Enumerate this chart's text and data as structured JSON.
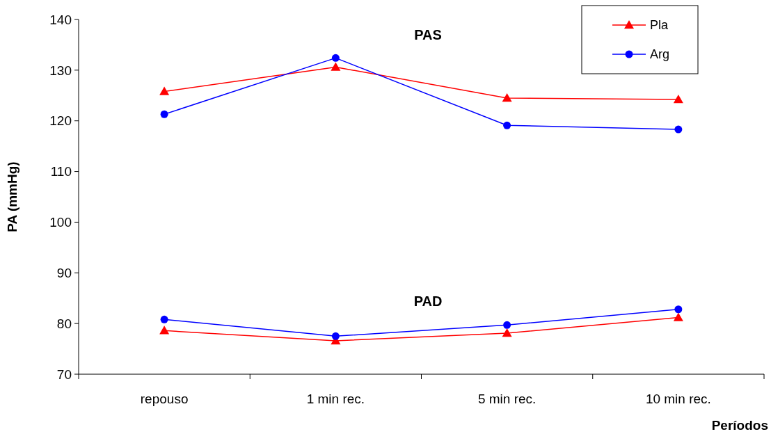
{
  "chart_data": {
    "type": "line",
    "ylabel": "PA (mmHg)",
    "xlabel": "Períodos",
    "categories": [
      "repouso",
      "1 min rec.",
      "5 min rec.",
      "10 min rec."
    ],
    "series": [
      {
        "name": "Pla",
        "color": "#ff0000",
        "marker": "triangle",
        "values": [
          125.8,
          130.6,
          124.5,
          124.2
        ]
      },
      {
        "name": "Arg",
        "color": "#0000ff",
        "marker": "circle",
        "values": [
          121.3,
          132.4,
          119.1,
          118.3
        ]
      },
      {
        "color": "#ff0000",
        "marker": "triangle",
        "values": [
          78.6,
          76.6,
          78.1,
          81.2
        ]
      },
      {
        "color": "#0000ff",
        "marker": "circle",
        "values": [
          80.8,
          77.5,
          79.7,
          82.8
        ]
      }
    ],
    "annotations": [
      "PAS",
      "PAD"
    ],
    "ylim": [
      70,
      140
    ],
    "yticks": [
      70,
      80,
      90,
      100,
      110,
      120,
      130,
      140
    ],
    "grid": false,
    "legend": "top right"
  }
}
